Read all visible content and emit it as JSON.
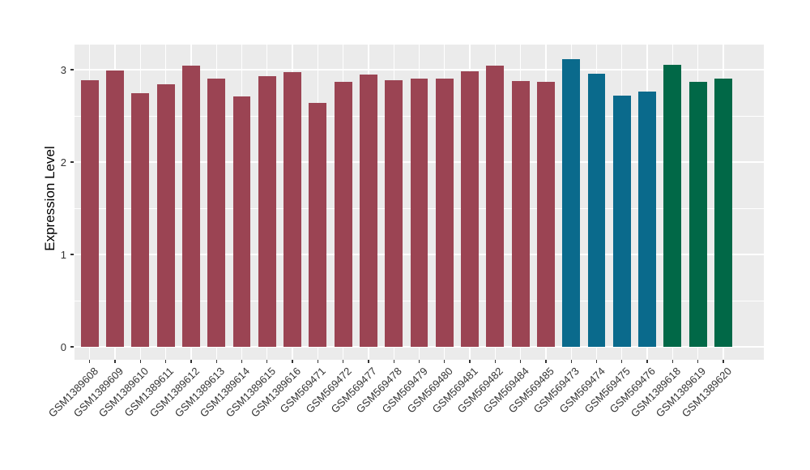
{
  "figure": {
    "background": "#FFFFFF",
    "panel_background": "#EBEBEB",
    "gridline_color": "#FFFFFF",
    "tick_color": "#333333",
    "axis_text_color": "#333333",
    "axis_title_color": "#000000"
  },
  "chart_data": {
    "type": "bar",
    "title": "",
    "xlabel": "",
    "ylabel": "Expression Level",
    "ylim": [
      0,
      3.27
    ],
    "yticks": [
      0,
      1,
      2,
      3
    ],
    "yminor": [
      0.5,
      1.5,
      2.5
    ],
    "grid": true,
    "legend_position": "none",
    "categories": [
      "GSM1389608",
      "GSM1389609",
      "GSM1389610",
      "GSM1389611",
      "GSM1389612",
      "GSM1389613",
      "GSM1389614",
      "GSM1389615",
      "GSM1389616",
      "GSM569471",
      "GSM569472",
      "GSM569477",
      "GSM569478",
      "GSM569479",
      "GSM569480",
      "GSM569481",
      "GSM569482",
      "GSM569484",
      "GSM569485",
      "GSM569473",
      "GSM569474",
      "GSM569475",
      "GSM569476",
      "GSM1389618",
      "GSM1389619",
      "GSM1389620"
    ],
    "values": [
      2.89,
      2.99,
      2.75,
      2.84,
      3.04,
      2.9,
      2.71,
      2.93,
      2.97,
      2.64,
      2.87,
      2.95,
      2.89,
      2.9,
      2.9,
      2.98,
      3.04,
      2.88,
      2.87,
      3.11,
      2.96,
      2.72,
      2.76,
      3.05,
      2.87,
      2.9
    ],
    "group_of": [
      "group1",
      "group1",
      "group1",
      "group1",
      "group1",
      "group1",
      "group1",
      "group1",
      "group1",
      "group1",
      "group1",
      "group1",
      "group1",
      "group1",
      "group1",
      "group1",
      "group1",
      "group1",
      "group1",
      "group2",
      "group2",
      "group2",
      "group2",
      "group3",
      "group3",
      "group3"
    ],
    "group_colors": {
      "group1": "#9B4453",
      "group2": "#0A6A8C",
      "group3": "#016847"
    }
  }
}
